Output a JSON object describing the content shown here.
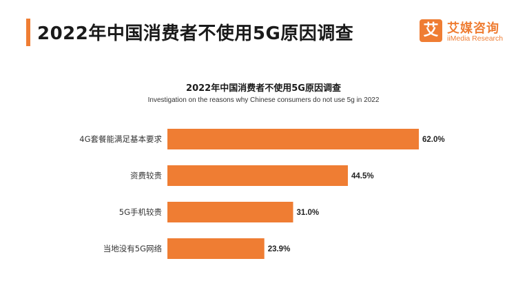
{
  "header": {
    "title": "2022年中国消费者不使用5G原因调查"
  },
  "brand": {
    "mark": "艾",
    "name": "艾媒咨询",
    "sub": "iiMedia Research"
  },
  "colors": {
    "accent": "#ef7d33"
  },
  "chart_data": {
    "type": "bar",
    "orientation": "horizontal",
    "title": "2022年中国消费者不使用5G原因调查",
    "subtitle": "Investigation on the reasons why Chinese consumers do not use 5g in 2022",
    "categories": [
      "4G套餐能满足基本要求",
      "资费较贵",
      "5G手机较贵",
      "当地没有5G网络"
    ],
    "values": [
      62.0,
      44.5,
      31.0,
      23.9
    ],
    "value_labels": [
      "62.0%",
      "44.5%",
      "31.0%",
      "23.9%"
    ],
    "unit": "%",
    "xlim": [
      0,
      62.0
    ],
    "grid": false,
    "legend": "none",
    "color": "#ef7d33"
  }
}
